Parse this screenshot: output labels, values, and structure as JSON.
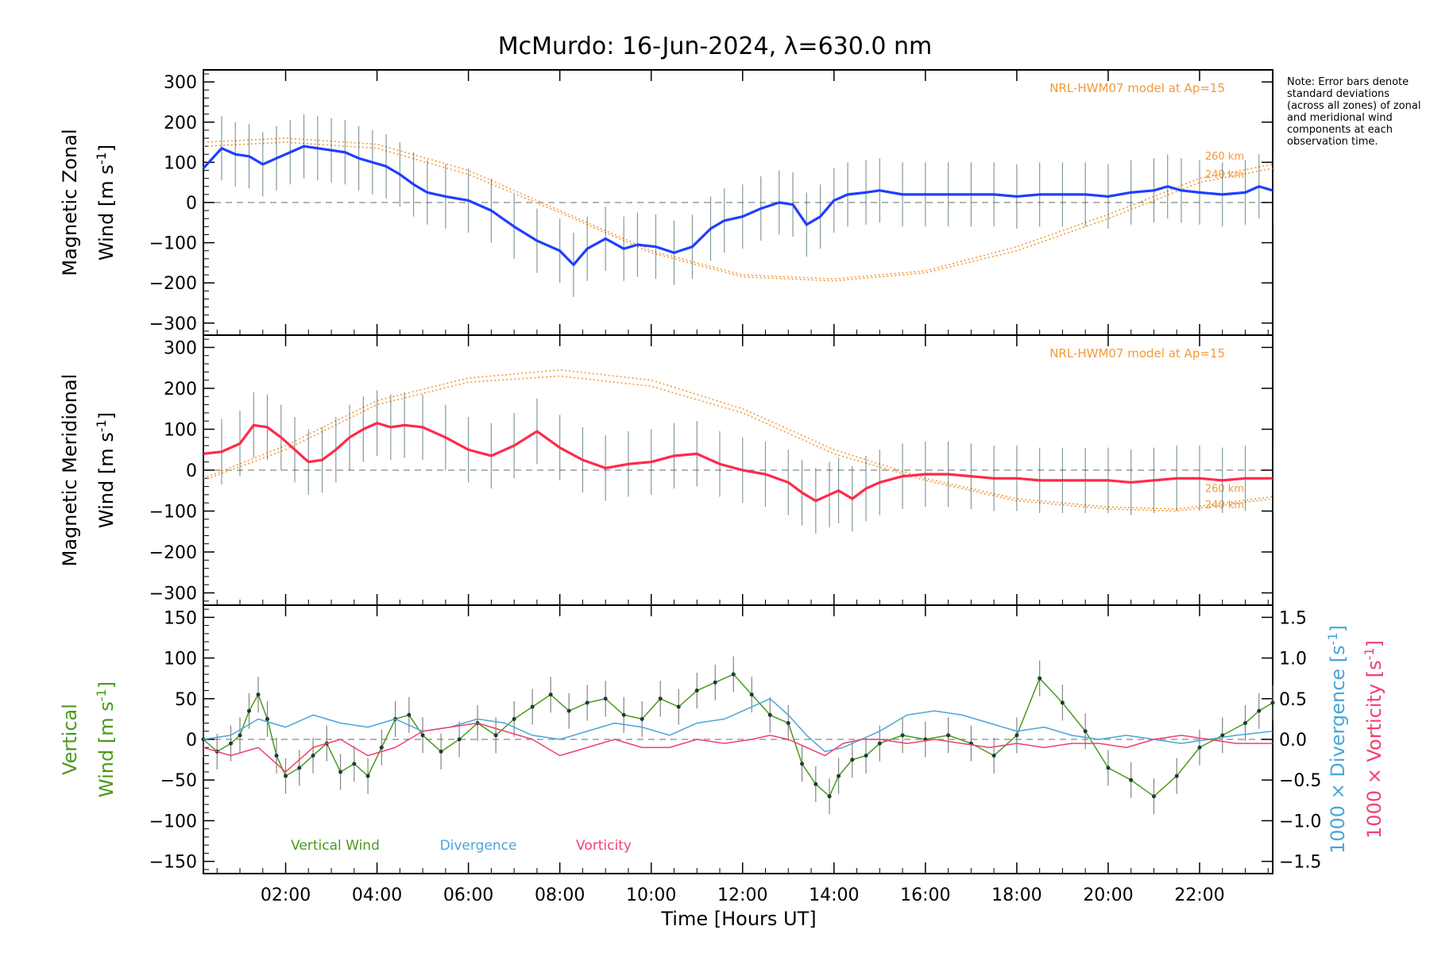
{
  "title": "McMurdo: 16-Jun-2024, λ=630.0 nm",
  "note": "Note: Error bars denote standard deviations (across all zones) of zonal and meridional wind components at each observation time.",
  "xlabel": "Time [Hours UT]",
  "model_label": "NRL-HWM07 model at Ap=15",
  "model_alt_labels": [
    "260 km",
    "240 km"
  ],
  "chart_data": [
    {
      "type": "line",
      "panel": "zonal",
      "ylabel": [
        "Magnetic Zonal",
        "Wind [m s-1]"
      ],
      "ylim": [
        -330,
        330
      ],
      "yticks": [
        300,
        200,
        100,
        0,
        -100,
        -200,
        -300
      ],
      "xlim": [
        0.2,
        23.6
      ],
      "xticks": [
        "02:00",
        "04:00",
        "06:00",
        "08:00",
        "10:00",
        "12:00",
        "14:00",
        "16:00",
        "18:00",
        "20:00",
        "22:00"
      ],
      "zero_line": true,
      "series": [
        {
          "name": "Zonal wind",
          "color": "#1f3fff",
          "x": [
            0.2,
            0.6,
            0.9,
            1.2,
            1.5,
            1.8,
            2.1,
            2.4,
            2.7,
            3.0,
            3.3,
            3.6,
            3.9,
            4.2,
            4.5,
            4.8,
            5.1,
            5.5,
            6.0,
            6.5,
            7.0,
            7.5,
            8.0,
            8.3,
            8.6,
            9.0,
            9.4,
            9.7,
            10.1,
            10.5,
            10.9,
            11.3,
            11.6,
            12.0,
            12.4,
            12.8,
            13.1,
            13.4,
            13.7,
            14.0,
            14.3,
            14.7,
            15.0,
            15.5,
            16.0,
            16.5,
            17.0,
            17.5,
            18.0,
            18.5,
            19.0,
            19.5,
            20.0,
            20.5,
            21.0,
            21.3,
            21.6,
            22.0,
            22.5,
            23.0,
            23.3,
            23.6
          ],
          "values": [
            85,
            135,
            120,
            115,
            95,
            110,
            125,
            140,
            135,
            130,
            125,
            110,
            100,
            90,
            70,
            45,
            25,
            15,
            5,
            -20,
            -60,
            -95,
            -120,
            -155,
            -115,
            -90,
            -115,
            -105,
            -110,
            -125,
            -110,
            -65,
            -45,
            -35,
            -15,
            0,
            -5,
            -55,
            -35,
            5,
            20,
            25,
            30,
            20,
            20,
            20,
            20,
            20,
            15,
            20,
            20,
            20,
            15,
            25,
            30,
            40,
            30,
            25,
            20,
            25,
            40,
            30
          ]
        }
      ],
      "model_curves": [
        {
          "label": "260 km",
          "x": [
            0.2,
            2,
            4,
            6,
            8,
            10,
            12,
            14,
            16,
            18,
            20,
            22,
            23.6
          ],
          "values": [
            150,
            160,
            145,
            80,
            -20,
            -120,
            -180,
            -190,
            -170,
            -110,
            -30,
            60,
            95
          ]
        },
        {
          "label": "240 km",
          "x": [
            0.2,
            2,
            4,
            6,
            8,
            10,
            12,
            14,
            16,
            18,
            20,
            22,
            23.6
          ],
          "values": [
            140,
            150,
            135,
            70,
            -25,
            -125,
            -185,
            -195,
            -175,
            -120,
            -40,
            50,
            85
          ]
        }
      ]
    },
    {
      "type": "line",
      "panel": "meridional",
      "ylabel": [
        "Magnetic Meridional",
        "Wind [m s-1]"
      ],
      "ylim": [
        -330,
        330
      ],
      "yticks": [
        300,
        200,
        100,
        0,
        -100,
        -200,
        -300
      ],
      "xlim": [
        0.2,
        23.6
      ],
      "xticks": [
        "02:00",
        "04:00",
        "06:00",
        "08:00",
        "10:00",
        "12:00",
        "14:00",
        "16:00",
        "18:00",
        "20:00",
        "22:00"
      ],
      "zero_line": true,
      "series": [
        {
          "name": "Meridional wind",
          "color": "#ff2a4a",
          "x": [
            0.2,
            0.6,
            1.0,
            1.3,
            1.6,
            1.9,
            2.2,
            2.5,
            2.8,
            3.1,
            3.4,
            3.7,
            4.0,
            4.3,
            4.6,
            5.0,
            5.5,
            6.0,
            6.5,
            7.0,
            7.5,
            8.0,
            8.5,
            9.0,
            9.5,
            10.0,
            10.5,
            11.0,
            11.5,
            12.0,
            12.5,
            13.0,
            13.3,
            13.6,
            13.9,
            14.1,
            14.4,
            14.7,
            15.0,
            15.5,
            16.0,
            16.5,
            17.0,
            17.5,
            18.0,
            18.5,
            19.0,
            19.5,
            20.0,
            20.5,
            21.0,
            21.5,
            22.0,
            22.5,
            23.0,
            23.6
          ],
          "values": [
            40,
            45,
            65,
            110,
            105,
            80,
            50,
            20,
            25,
            50,
            80,
            100,
            115,
            105,
            110,
            105,
            80,
            50,
            35,
            60,
            95,
            55,
            25,
            5,
            15,
            20,
            35,
            40,
            15,
            0,
            -10,
            -30,
            -55,
            -75,
            -60,
            -50,
            -70,
            -45,
            -30,
            -15,
            -10,
            -10,
            -15,
            -20,
            -20,
            -25,
            -25,
            -25,
            -25,
            -30,
            -25,
            -20,
            -20,
            -25,
            -20,
            -20
          ]
        }
      ],
      "model_curves": [
        {
          "label": "260 km",
          "x": [
            0.2,
            2,
            4,
            6,
            8,
            10,
            12,
            14,
            16,
            18,
            20,
            21.5,
            23.6
          ],
          "values": [
            -20,
            60,
            170,
            225,
            245,
            220,
            150,
            50,
            -20,
            -70,
            -90,
            -95,
            -65
          ]
        },
        {
          "label": "240 km",
          "x": [
            0.2,
            2,
            4,
            6,
            8,
            10,
            12,
            14,
            16,
            18,
            20,
            21.5,
            23.6
          ],
          "values": [
            -25,
            50,
            160,
            215,
            230,
            205,
            140,
            40,
            -25,
            -75,
            -95,
            -100,
            -70
          ]
        }
      ]
    },
    {
      "type": "line",
      "panel": "vertical",
      "ylabel": [
        "Vertical",
        "Wind [m s-1]"
      ],
      "ylabel_right": [
        "1000 × Divergence [s-1]",
        "1000 × Vorticity [s-1]"
      ],
      "ylim": [
        -165,
        165
      ],
      "yticks": [
        150,
        100,
        50,
        0,
        -50,
        -100,
        -150
      ],
      "ylim_right": [
        -1.65,
        1.65
      ],
      "yticks_right": [
        "1.5",
        "1.0",
        "0.5",
        "0.0",
        "-0.5",
        "-1.0",
        "-1.5"
      ],
      "xlim": [
        0.2,
        23.6
      ],
      "xticks": [
        "02:00",
        "04:00",
        "06:00",
        "08:00",
        "10:00",
        "12:00",
        "14:00",
        "16:00",
        "18:00",
        "20:00",
        "22:00"
      ],
      "zero_line": true,
      "legend": [
        "Vertical Wind",
        "Divergence",
        "Vorticity"
      ],
      "series": [
        {
          "name": "Vertical Wind",
          "color": "#4a9a1a",
          "x": [
            0.2,
            0.5,
            0.8,
            1.0,
            1.2,
            1.4,
            1.6,
            1.8,
            2.0,
            2.3,
            2.6,
            2.9,
            3.2,
            3.5,
            3.8,
            4.1,
            4.4,
            4.7,
            5.0,
            5.4,
            5.8,
            6.2,
            6.6,
            7.0,
            7.4,
            7.8,
            8.2,
            8.6,
            9.0,
            9.4,
            9.8,
            10.2,
            10.6,
            11.0,
            11.4,
            11.8,
            12.2,
            12.6,
            13.0,
            13.3,
            13.6,
            13.9,
            14.1,
            14.4,
            14.7,
            15.0,
            15.5,
            16.0,
            16.5,
            17.0,
            17.5,
            18.0,
            18.5,
            19.0,
            19.5,
            20.0,
            20.5,
            21.0,
            21.5,
            22.0,
            22.5,
            23.0,
            23.3,
            23.6
          ],
          "values": [
            0,
            -15,
            -5,
            5,
            35,
            55,
            25,
            -20,
            -45,
            -35,
            -20,
            -5,
            -40,
            -30,
            -45,
            -10,
            25,
            30,
            5,
            -15,
            0,
            20,
            5,
            25,
            40,
            55,
            35,
            45,
            50,
            30,
            25,
            50,
            40,
            60,
            70,
            80,
            55,
            30,
            20,
            -30,
            -55,
            -70,
            -45,
            -25,
            -20,
            -5,
            5,
            0,
            5,
            -5,
            -20,
            5,
            75,
            45,
            10,
            -35,
            -50,
            -70,
            -45,
            -10,
            5,
            20,
            35,
            45
          ]
        },
        {
          "name": "Divergence",
          "color": "#4aa6d8",
          "axis": "right",
          "x": [
            0.2,
            0.8,
            1.4,
            2.0,
            2.6,
            3.2,
            3.8,
            4.4,
            5.0,
            5.6,
            6.2,
            6.8,
            7.4,
            8.0,
            8.6,
            9.2,
            9.8,
            10.4,
            11.0,
            11.6,
            12.2,
            12.6,
            13.0,
            13.4,
            13.8,
            14.2,
            14.6,
            15.0,
            15.6,
            16.2,
            16.8,
            17.4,
            18.0,
            18.6,
            19.2,
            19.8,
            20.4,
            21.0,
            21.6,
            22.2,
            22.8,
            23.6
          ],
          "values": [
            0.0,
            0.05,
            0.25,
            0.15,
            0.3,
            0.2,
            0.15,
            0.25,
            0.1,
            0.15,
            0.25,
            0.2,
            0.05,
            0.0,
            0.1,
            0.2,
            0.15,
            0.05,
            0.2,
            0.25,
            0.4,
            0.5,
            0.3,
            0.05,
            -0.15,
            -0.1,
            0.0,
            0.1,
            0.3,
            0.35,
            0.3,
            0.2,
            0.1,
            0.15,
            0.05,
            0.0,
            0.05,
            0.0,
            -0.05,
            0.0,
            0.05,
            0.1
          ]
        },
        {
          "name": "Vorticity",
          "color": "#f2406e",
          "axis": "right",
          "x": [
            0.2,
            0.8,
            1.4,
            2.0,
            2.6,
            3.2,
            3.8,
            4.4,
            5.0,
            5.6,
            6.2,
            6.8,
            7.4,
            8.0,
            8.6,
            9.2,
            9.8,
            10.4,
            11.0,
            11.6,
            12.2,
            12.6,
            13.0,
            13.4,
            13.8,
            14.2,
            14.6,
            15.0,
            15.6,
            16.2,
            16.8,
            17.4,
            18.0,
            18.6,
            19.2,
            19.8,
            20.4,
            21.0,
            21.6,
            22.2,
            22.8,
            23.6
          ],
          "values": [
            -0.1,
            -0.2,
            -0.1,
            -0.4,
            -0.1,
            0.0,
            -0.2,
            -0.1,
            0.1,
            0.15,
            0.2,
            0.1,
            0.0,
            -0.2,
            -0.1,
            0.0,
            -0.1,
            -0.1,
            0.0,
            -0.05,
            0.0,
            0.05,
            0.0,
            -0.1,
            -0.2,
            -0.05,
            0.0,
            0.0,
            -0.05,
            0.0,
            -0.05,
            -0.1,
            -0.05,
            -0.1,
            -0.05,
            -0.05,
            -0.1,
            0.0,
            0.05,
            0.0,
            -0.05,
            -0.05
          ]
        }
      ]
    }
  ]
}
